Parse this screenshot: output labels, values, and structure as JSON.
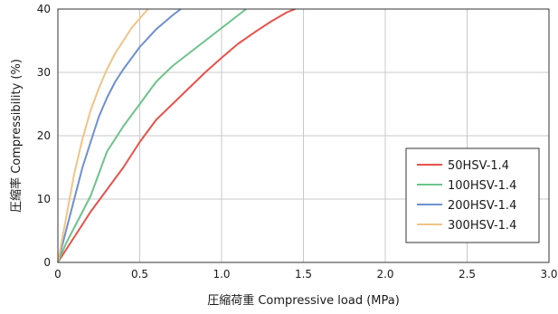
{
  "chart_data": {
    "type": "line",
    "title": "",
    "xlabel": "圧縮荷重  Compressive load (MPa)",
    "ylabel": "圧縮率  Compressibility (%)",
    "xlim": [
      0,
      3.0
    ],
    "ylim": [
      0,
      40
    ],
    "x_ticks": [
      "0",
      "0.5",
      "1.0",
      "1.5",
      "2.0",
      "2.5",
      "3.0"
    ],
    "y_ticks": [
      "0",
      "10",
      "20",
      "30",
      "40"
    ],
    "grid": true,
    "legend_position": "lower-right",
    "series": [
      {
        "name": "50HSV-1.4",
        "color": "#e8524a",
        "points": [
          [
            0,
            0
          ],
          [
            0.05,
            2
          ],
          [
            0.1,
            4
          ],
          [
            0.15,
            6
          ],
          [
            0.2,
            8
          ],
          [
            0.3,
            11.5
          ],
          [
            0.4,
            15
          ],
          [
            0.5,
            19
          ],
          [
            0.6,
            22.5
          ],
          [
            0.7,
            25
          ],
          [
            0.8,
            27.5
          ],
          [
            0.9,
            30
          ],
          [
            1.0,
            32.3
          ],
          [
            1.1,
            34.5
          ],
          [
            1.2,
            36.3
          ],
          [
            1.3,
            38
          ],
          [
            1.4,
            39.5
          ],
          [
            1.45,
            40
          ]
        ]
      },
      {
        "name": "100HSV-1.4",
        "color": "#6cc48a",
        "points": [
          [
            0,
            0
          ],
          [
            0.05,
            3
          ],
          [
            0.1,
            5.5
          ],
          [
            0.15,
            8
          ],
          [
            0.2,
            10.5
          ],
          [
            0.25,
            14
          ],
          [
            0.3,
            17.5
          ],
          [
            0.4,
            21.5
          ],
          [
            0.5,
            25
          ],
          [
            0.6,
            28.5
          ],
          [
            0.7,
            31
          ],
          [
            0.8,
            33
          ],
          [
            0.9,
            35
          ],
          [
            1.0,
            37
          ],
          [
            1.1,
            39
          ],
          [
            1.15,
            40
          ]
        ]
      },
      {
        "name": "200HSV-1.4",
        "color": "#6e8fd0",
        "points": [
          [
            0,
            0
          ],
          [
            0.05,
            5
          ],
          [
            0.1,
            10
          ],
          [
            0.15,
            15
          ],
          [
            0.2,
            19
          ],
          [
            0.25,
            23
          ],
          [
            0.3,
            26
          ],
          [
            0.35,
            28.5
          ],
          [
            0.4,
            30.5
          ],
          [
            0.5,
            34
          ],
          [
            0.6,
            36.8
          ],
          [
            0.7,
            39
          ],
          [
            0.75,
            40
          ]
        ]
      },
      {
        "name": "300HSV-1.4",
        "color": "#f2c386",
        "points": [
          [
            0,
            0
          ],
          [
            0.05,
            7
          ],
          [
            0.1,
            14
          ],
          [
            0.15,
            19.5
          ],
          [
            0.2,
            24
          ],
          [
            0.25,
            27.5
          ],
          [
            0.3,
            30.5
          ],
          [
            0.35,
            33
          ],
          [
            0.4,
            35
          ],
          [
            0.45,
            37
          ],
          [
            0.5,
            38.5
          ],
          [
            0.55,
            40
          ]
        ]
      }
    ]
  }
}
